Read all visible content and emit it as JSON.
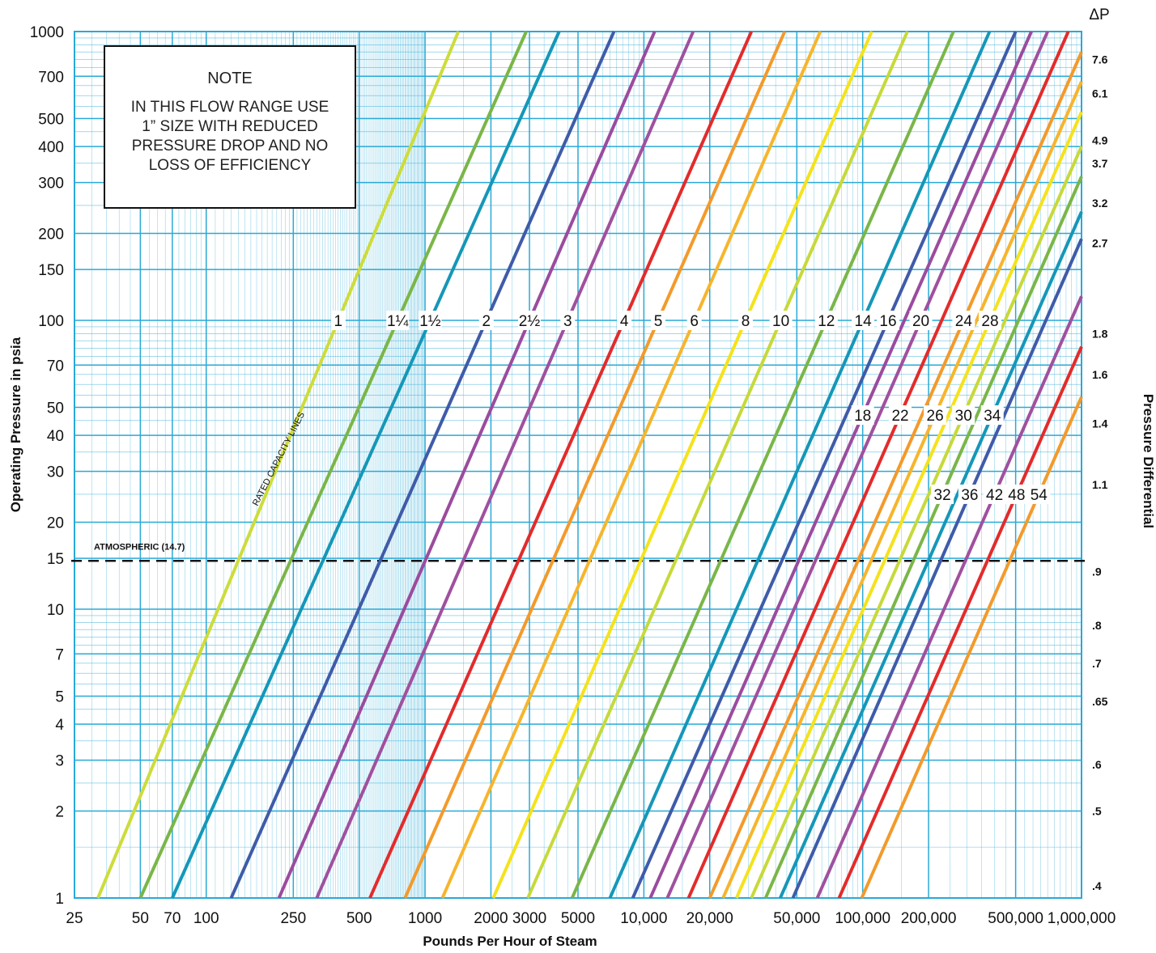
{
  "chart_data": {
    "type": "line",
    "title": "",
    "xlabel": "Pounds Per Hour of Steam",
    "ylabel": "Operating Pressure in psia",
    "y2label": "Pressure Differential",
    "x_scale": "log",
    "y_scale": "log",
    "xlim": [
      25,
      1000000
    ],
    "ylim": [
      1,
      1000
    ],
    "x_ticks": [
      {
        "value": 25,
        "label": "25"
      },
      {
        "value": 50,
        "label": "50"
      },
      {
        "value": 70,
        "label": "70"
      },
      {
        "value": 100,
        "label": "100"
      },
      {
        "value": 250,
        "label": "250"
      },
      {
        "value": 500,
        "label": "500"
      },
      {
        "value": 1000,
        "label": "1000"
      },
      {
        "value": 2000,
        "label": "2000"
      },
      {
        "value": 3000,
        "label": "3000"
      },
      {
        "value": 5000,
        "label": "5000"
      },
      {
        "value": 10000,
        "label": "10,000"
      },
      {
        "value": 20000,
        "label": "20,000"
      },
      {
        "value": 50000,
        "label": "50,000"
      },
      {
        "value": 100000,
        "label": "100,000"
      },
      {
        "value": 200000,
        "label": "200,000"
      },
      {
        "value": 500000,
        "label": "500,000"
      },
      {
        "value": 1000000,
        "label": "1,000,000"
      }
    ],
    "y_ticks": [
      {
        "value": 1,
        "label": "1"
      },
      {
        "value": 2,
        "label": "2"
      },
      {
        "value": 3,
        "label": "3"
      },
      {
        "value": 4,
        "label": "4"
      },
      {
        "value": 5,
        "label": "5"
      },
      {
        "value": 7,
        "label": "7"
      },
      {
        "value": 10,
        "label": "10"
      },
      {
        "value": 15,
        "label": "15"
      },
      {
        "value": 20,
        "label": "20"
      },
      {
        "value": 30,
        "label": "30"
      },
      {
        "value": 40,
        "label": "40"
      },
      {
        "value": 50,
        "label": "50"
      },
      {
        "value": 70,
        "label": "70"
      },
      {
        "value": 100,
        "label": "100"
      },
      {
        "value": 150,
        "label": "150"
      },
      {
        "value": 200,
        "label": "200"
      },
      {
        "value": 300,
        "label": "300"
      },
      {
        "value": 400,
        "label": "400"
      },
      {
        "value": 500,
        "label": "500"
      },
      {
        "value": 700,
        "label": "700"
      },
      {
        "value": 1000,
        "label": "1000"
      }
    ],
    "dp_header": "ΔP",
    "dp_labels": [
      {
        "p": 800,
        "label": "7.6"
      },
      {
        "p": 610,
        "label": "6.1"
      },
      {
        "p": 420,
        "label": "4.9"
      },
      {
        "p": 350,
        "label": "3.7"
      },
      {
        "p": 255,
        "label": "3.2"
      },
      {
        "p": 185,
        "label": "2.7"
      },
      {
        "p": 90,
        "label": "1.8"
      },
      {
        "p": 65,
        "label": "1.6"
      },
      {
        "p": 44,
        "label": "1.4"
      },
      {
        "p": 27,
        "label": "1.1"
      },
      {
        "p": 13.5,
        "label": ".9"
      },
      {
        "p": 8.8,
        "label": ".8"
      },
      {
        "p": 6.5,
        "label": ".7"
      },
      {
        "p": 4.8,
        "label": ".65"
      },
      {
        "p": 2.9,
        "label": ".6"
      },
      {
        "p": 2.0,
        "label": ".5"
      },
      {
        "p": 1.1,
        "label": ".4"
      }
    ],
    "atmospheric_line": {
      "value": 14.7,
      "label": "ATMOSPHERIC (14.7)"
    },
    "rated_capacity_label": "RATED CAPACITY LINES",
    "note": {
      "title": "NOTE",
      "lines": [
        "IN THIS FLOW RANGE USE",
        "1” SIZE WITH REDUCED",
        "PRESSURE DROP AND NO",
        "LOSS OF EFFICIENCY"
      ]
    },
    "series": [
      {
        "name": "1",
        "label": "1",
        "color": "#cddc3a",
        "x_at_1": 32,
        "x_at_1000": 1420,
        "label_p": 100
      },
      {
        "name": "1 1/4",
        "label": "1¼",
        "color": "#7ab648",
        "x_at_1": 50,
        "x_at_1000": 2900,
        "label_p": 100
      },
      {
        "name": "1 1/2",
        "label": "1½",
        "color": "#1597b8",
        "x_at_1": 70,
        "x_at_1000": 4100,
        "label_p": 100
      },
      {
        "name": "2",
        "label": "2",
        "color": "#3f5ba9",
        "x_at_1": 130,
        "x_at_1000": 7300,
        "label_p": 100
      },
      {
        "name": "2 1/2",
        "label": "2½",
        "color": "#9b4b9e",
        "x_at_1": 215,
        "x_at_1000": 11200,
        "label_p": 100
      },
      {
        "name": "3",
        "label": "3",
        "color": "#a0509e",
        "x_at_1": 320,
        "x_at_1000": 16800,
        "label_p": 100
      },
      {
        "name": "4",
        "label": "4",
        "color": "#e32b2b",
        "x_at_1": 560,
        "x_at_1000": 31000,
        "label_p": 100
      },
      {
        "name": "5",
        "label": "5",
        "color": "#f39a2b",
        "x_at_1": 810,
        "x_at_1000": 44000,
        "label_p": 100
      },
      {
        "name": "6",
        "label": "6",
        "color": "#f7b52c",
        "x_at_1": 1200,
        "x_at_1000": 64000,
        "label_p": 100
      },
      {
        "name": "8",
        "label": "8",
        "color": "#f5e21b",
        "x_at_1": 2050,
        "x_at_1000": 110000,
        "label_p": 100
      },
      {
        "name": "10",
        "label": "10",
        "color": "#c7d93a",
        "x_at_1": 2950,
        "x_at_1000": 160000,
        "label_p": 100
      },
      {
        "name": "12",
        "label": "12",
        "color": "#7ab648",
        "x_at_1": 4700,
        "x_at_1000": 260000,
        "label_p": 100
      },
      {
        "name": "14",
        "label": "14",
        "color": "#1597b8",
        "x_at_1": 7000,
        "x_at_1000": 380000,
        "label_p": 100
      },
      {
        "name": "16",
        "label": "16",
        "color": "#3f5ba9",
        "x_at_1": 8900,
        "x_at_1000": 500000,
        "label_p": 100
      },
      {
        "name": "18",
        "label": "18",
        "color": "#9b4b9e",
        "x_at_1": 10700,
        "x_at_1000": 590000,
        "label_p": 47
      },
      {
        "name": "20",
        "label": "20",
        "color": "#a0509e",
        "x_at_1": 12800,
        "x_at_1000": 700000,
        "label_p": 100
      },
      {
        "name": "22",
        "label": "22",
        "color": "#e32b2b",
        "x_at_1": 16000,
        "x_at_1000": 870000,
        "label_p": 47
      },
      {
        "name": "24",
        "label": "24",
        "color": "#f39a2b",
        "x_at_1": 20000,
        "x_at_1000": 1100000,
        "label_p": 100
      },
      {
        "name": "26",
        "label": "26",
        "color": "#f7b52c",
        "x_at_1": 23000,
        "x_at_1000": 1260000,
        "label_p": 47
      },
      {
        "name": "28",
        "label": "28",
        "color": "#f5e21b",
        "x_at_1": 26500,
        "x_at_1000": 1450000,
        "label_p": 100
      },
      {
        "name": "30",
        "label": "30",
        "color": "#c7d93a",
        "x_at_1": 31000,
        "x_at_1000": 1700000,
        "label_p": 47
      },
      {
        "name": "32",
        "label": "32",
        "color": "#7ab648",
        "x_at_1": 36000,
        "x_at_1000": 1950000,
        "label_p": 25
      },
      {
        "name": "34",
        "label": "34",
        "color": "#1597b8",
        "x_at_1": 42000,
        "x_at_1000": 2300000,
        "label_p": 47
      },
      {
        "name": "36",
        "label": "36",
        "color": "#3f5ba9",
        "x_at_1": 48000,
        "x_at_1000": 2600000,
        "label_p": 25
      },
      {
        "name": "42",
        "label": "42",
        "color": "#a0509e",
        "x_at_1": 62000,
        "x_at_1000": 3400000,
        "label_p": 25
      },
      {
        "name": "48",
        "label": "48",
        "color": "#e32b2b",
        "x_at_1": 78000,
        "x_at_1000": 4300000,
        "label_p": 25
      },
      {
        "name": "54",
        "label": "54",
        "color": "#f39a2b",
        "x_at_1": 99000,
        "x_at_1000": 5400000,
        "label_p": 25
      }
    ]
  }
}
